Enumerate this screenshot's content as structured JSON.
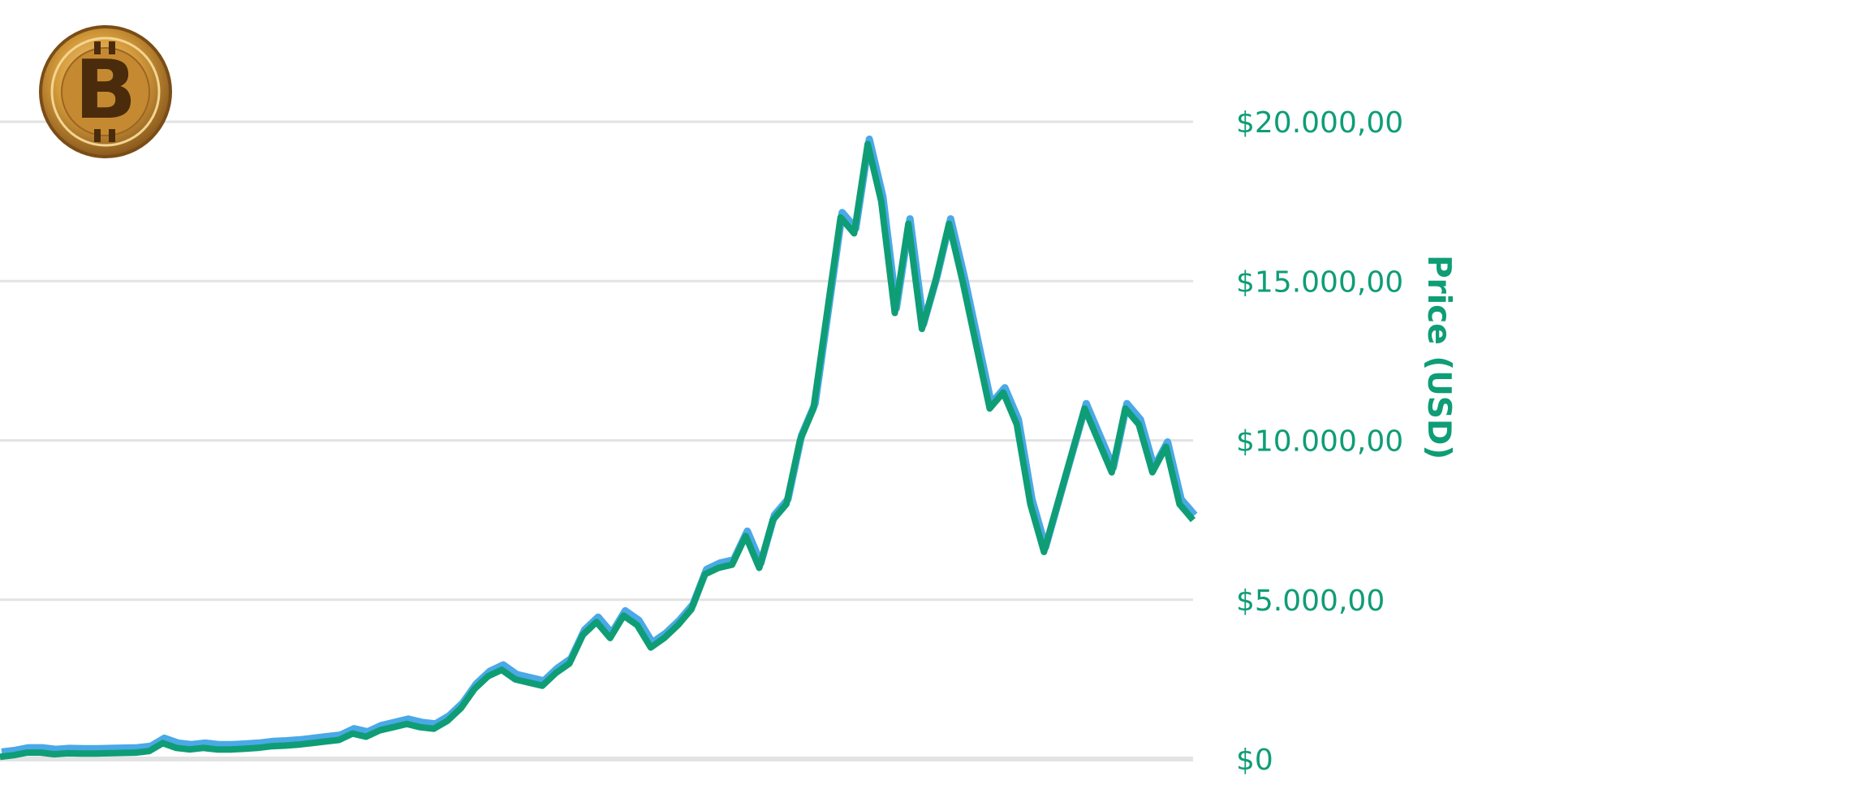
{
  "colors": {
    "price_line": "#0f9d76",
    "secondary_line": "#4aa9e6",
    "gridline": "#e3e3e3",
    "axis_text": "#0f9d76",
    "coin_gold": "#c98d2c"
  },
  "logo": {
    "icon": "bitcoin-coin-icon",
    "glyph": "B"
  },
  "chart_data": {
    "type": "line",
    "ylabel": "Price (USD)",
    "xlabel": "",
    "ylim": [
      0,
      20000
    ],
    "y_axis_position": "right",
    "grid": true,
    "y_ticks": [
      {
        "value": 20000,
        "label": "$20.000,00"
      },
      {
        "value": 15000,
        "label": "$15.000,00"
      },
      {
        "value": 10000,
        "label": "$10.000,00"
      },
      {
        "value": 5000,
        "label": "$5.000,00"
      },
      {
        "value": 0,
        "label": "$0"
      }
    ],
    "series": [
      {
        "values": [
          70,
          120,
          200,
          200,
          150,
          180,
          170,
          170,
          180,
          190,
          200,
          250,
          500,
          350,
          300,
          350,
          300,
          300,
          320,
          350,
          400,
          420,
          450,
          500,
          550,
          600,
          800,
          700,
          900,
          1000,
          1100,
          1000,
          950,
          1200,
          1600,
          2200,
          2600,
          2800,
          2500,
          2400,
          2300,
          2700,
          3000,
          3900,
          4300,
          3800,
          4500,
          4200,
          3500,
          3800,
          4200,
          4700,
          5800,
          6000,
          6100,
          7000,
          6000,
          7500,
          8000,
          10000,
          11000,
          14000,
          17000,
          16500,
          19300,
          17500,
          14000,
          16800,
          13500,
          15000,
          16800,
          15000,
          13000,
          11000,
          11500,
          10500,
          8000,
          6500,
          8000,
          9500,
          11000,
          10000,
          9000,
          11000,
          10500,
          9000,
          9800,
          8000,
          7500
        ]
      }
    ]
  }
}
